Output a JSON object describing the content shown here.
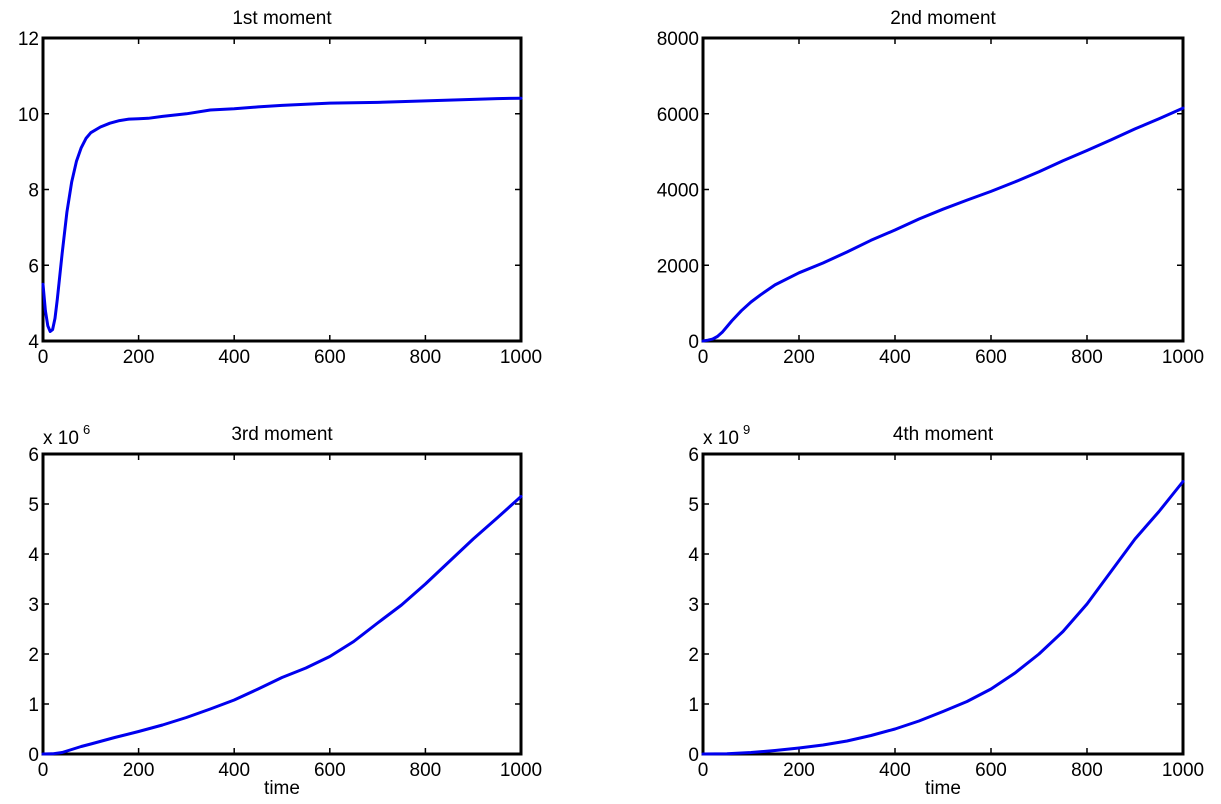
{
  "chart_data": [
    {
      "type": "line",
      "title": "1st moment",
      "xlabel": "",
      "ylabel": "",
      "xlim": [
        0,
        1000
      ],
      "ylim": [
        4,
        12
      ],
      "xticks": [
        0,
        200,
        400,
        600,
        800,
        1000
      ],
      "yticks": [
        4,
        6,
        8,
        10,
        12
      ],
      "xtick_labels": [
        "0",
        "200",
        "400",
        "600",
        "800",
        "1000"
      ],
      "ytick_labels": [
        "4",
        "6",
        "8",
        "10",
        "12"
      ],
      "y_exponent": null,
      "grid": false,
      "line_color": "#0000ee",
      "series": [
        {
          "x": [
            0,
            5,
            10,
            15,
            20,
            25,
            30,
            40,
            50,
            60,
            70,
            80,
            90,
            100,
            120,
            140,
            160,
            180,
            200,
            220,
            250,
            300,
            350,
            400,
            450,
            500,
            550,
            600,
            650,
            700,
            750,
            800,
            850,
            900,
            950,
            1000
          ],
          "y": [
            5.5,
            4.8,
            4.4,
            4.25,
            4.3,
            4.6,
            5.1,
            6.3,
            7.4,
            8.2,
            8.75,
            9.1,
            9.35,
            9.5,
            9.65,
            9.75,
            9.82,
            9.86,
            9.87,
            9.88,
            9.93,
            10.0,
            10.1,
            10.13,
            10.18,
            10.22,
            10.25,
            10.28,
            10.29,
            10.3,
            10.32,
            10.34,
            10.36,
            10.38,
            10.4,
            10.41
          ]
        }
      ]
    },
    {
      "type": "line",
      "title": "2nd moment",
      "xlabel": "",
      "ylabel": "",
      "xlim": [
        0,
        1000
      ],
      "ylim": [
        0,
        8000
      ],
      "xticks": [
        0,
        200,
        400,
        600,
        800,
        1000
      ],
      "yticks": [
        0,
        2000,
        4000,
        6000,
        8000
      ],
      "xtick_labels": [
        "0",
        "200",
        "400",
        "600",
        "800",
        "1000"
      ],
      "ytick_labels": [
        "0",
        "2000",
        "4000",
        "6000",
        "8000"
      ],
      "y_exponent": null,
      "grid": false,
      "line_color": "#0000ee",
      "series": [
        {
          "x": [
            0,
            10,
            20,
            30,
            40,
            50,
            60,
            80,
            100,
            120,
            150,
            200,
            250,
            300,
            350,
            400,
            450,
            500,
            550,
            600,
            650,
            700,
            750,
            800,
            850,
            900,
            950,
            1000
          ],
          "y": [
            0,
            20,
            50,
            120,
            230,
            380,
            530,
            800,
            1030,
            1220,
            1480,
            1800,
            2060,
            2350,
            2660,
            2930,
            3220,
            3480,
            3720,
            3950,
            4200,
            4470,
            4760,
            5030,
            5310,
            5600,
            5870,
            6150
          ]
        }
      ]
    },
    {
      "type": "line",
      "title": "3rd moment",
      "xlabel": "time",
      "ylabel": "",
      "xlim": [
        0,
        1000
      ],
      "ylim": [
        0,
        6
      ],
      "xticks": [
        0,
        200,
        400,
        600,
        800,
        1000
      ],
      "yticks": [
        0,
        1,
        2,
        3,
        4,
        5,
        6
      ],
      "xtick_labels": [
        "0",
        "200",
        "400",
        "600",
        "800",
        "1000"
      ],
      "ytick_labels": [
        "0",
        "1",
        "2",
        "3",
        "4",
        "5",
        "6"
      ],
      "y_exponent": {
        "base": "x 10",
        "power": "6"
      },
      "grid": false,
      "line_color": "#0000ee",
      "series": [
        {
          "x": [
            0,
            20,
            40,
            60,
            80,
            100,
            150,
            200,
            250,
            300,
            350,
            400,
            450,
            500,
            550,
            600,
            650,
            700,
            750,
            800,
            850,
            900,
            950,
            1000
          ],
          "y": [
            0,
            0.005,
            0.03,
            0.09,
            0.15,
            0.2,
            0.33,
            0.45,
            0.58,
            0.73,
            0.9,
            1.08,
            1.3,
            1.53,
            1.72,
            1.95,
            2.25,
            2.62,
            2.98,
            3.4,
            3.85,
            4.3,
            4.72,
            5.15
          ]
        }
      ]
    },
    {
      "type": "line",
      "title": "4th moment",
      "xlabel": "time",
      "ylabel": "",
      "xlim": [
        0,
        1000
      ],
      "ylim": [
        0,
        6
      ],
      "xticks": [
        0,
        200,
        400,
        600,
        800,
        1000
      ],
      "yticks": [
        0,
        1,
        2,
        3,
        4,
        5,
        6
      ],
      "xtick_labels": [
        "0",
        "200",
        "400",
        "600",
        "800",
        "1000"
      ],
      "ytick_labels": [
        "0",
        "1",
        "2",
        "3",
        "4",
        "5",
        "6"
      ],
      "y_exponent": {
        "base": "x 10",
        "power": "9"
      },
      "grid": false,
      "line_color": "#0000ee",
      "series": [
        {
          "x": [
            0,
            50,
            100,
            150,
            200,
            250,
            300,
            350,
            400,
            450,
            500,
            550,
            600,
            650,
            700,
            750,
            800,
            850,
            900,
            950,
            1000
          ],
          "y": [
            0,
            0.005,
            0.03,
            0.07,
            0.12,
            0.18,
            0.26,
            0.37,
            0.5,
            0.66,
            0.85,
            1.05,
            1.3,
            1.62,
            2.0,
            2.45,
            3.0,
            3.65,
            4.3,
            4.85,
            5.45
          ]
        }
      ]
    }
  ]
}
